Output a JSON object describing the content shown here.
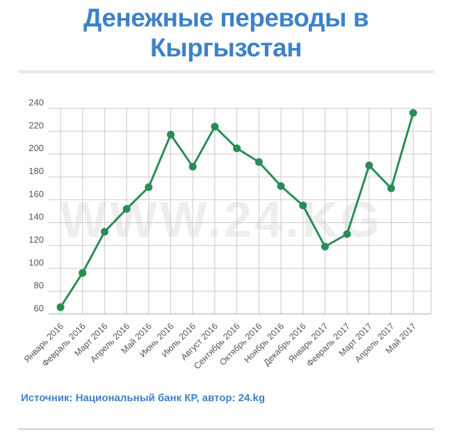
{
  "title": "Денежные переводы в Кыргызстан",
  "source_note": "Источник: Национальный банк КР, автор: 24.kg",
  "watermark": "WWW.24.KG",
  "colors": {
    "title_blue": "#3e82c8",
    "line_green": "#2a8c55",
    "grid": "#c9c9c9",
    "axis_line": "#a6a6a6",
    "axis_text": "#555555",
    "watermark": "#eeeeee",
    "divider": "#e9e9e9",
    "footer_divider": "#cfcfcf"
  },
  "chart_data": {
    "type": "line",
    "title": "Денежные переводы в Кыргызстан",
    "categories": [
      "Январь 2016",
      "Февраль 2016",
      "Март 2016",
      "Апрель 2016",
      "Май 2016",
      "Июнь 2016",
      "Июль 2016",
      "Август 2016",
      "Сентябрь 2016",
      "Октябрь 2016",
      "Ноябрь 2016",
      "Декабрь 2016",
      "Январь 2017",
      "Февраль 2017",
      "Март 2017",
      "Апрель 2017",
      "Май 2017"
    ],
    "values": [
      66,
      96,
      132,
      152,
      171,
      217,
      189,
      224,
      205,
      193,
      172,
      155,
      119,
      130,
      190,
      170,
      236
    ],
    "xlabel": "",
    "ylabel": "",
    "ylim": [
      60,
      240
    ],
    "ytick_step": 20,
    "grid": true,
    "legend": "none",
    "marker": "circle"
  }
}
